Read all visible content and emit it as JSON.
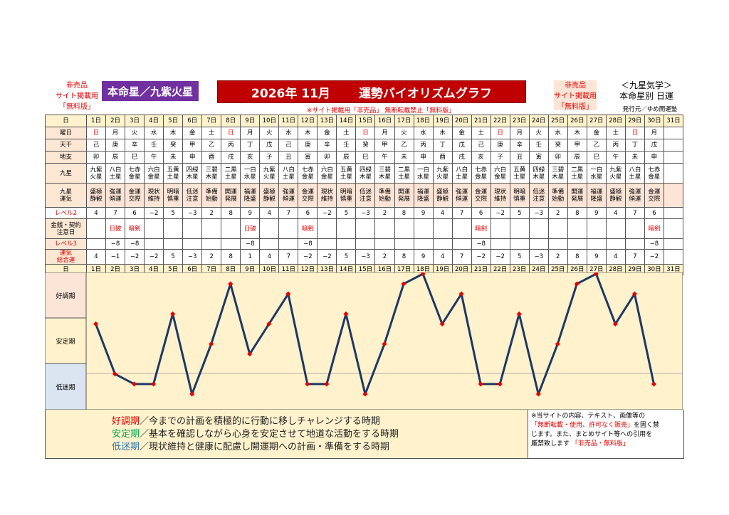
{
  "header": {
    "left_note": [
      "非売品",
      "サイト掲載用",
      "「無料版」"
    ],
    "star_label": "本命星／九紫火星",
    "title_year_month": "2026年 11月",
    "title_main": "運勢バイオリズムグラフ",
    "notice": "※サイト掲載用「非売品」 無断転載禁止「無料版」",
    "right_note": [
      "非売品",
      "サイト掲載用",
      "「無料版」"
    ],
    "brand": [
      "＜九星気学＞",
      "本命星別 日運"
    ],
    "publisher": "発行元／ゆめ開運塾"
  },
  "row_labels": {
    "day": "日",
    "weekday": "曜日",
    "stem": "天干",
    "branch": "地支",
    "star": "九星",
    "fortune": "九星\n運気",
    "level2": "レベル2",
    "money": "金銭・契約\n注意日",
    "level3": "レベル3",
    "total": "運気\n総合運"
  },
  "days": [
    "1日",
    "2日",
    "3日",
    "4日",
    "5日",
    "6日",
    "7日",
    "8日",
    "9日",
    "10日",
    "11日",
    "12日",
    "13日",
    "14日",
    "15日",
    "16日",
    "17日",
    "18日",
    "19日",
    "20日",
    "21日",
    "22日",
    "23日",
    "24日",
    "25日",
    "26日",
    "27日",
    "28日",
    "29日",
    "30日",
    "31日"
  ],
  "weekdays": [
    "日",
    "月",
    "火",
    "水",
    "木",
    "金",
    "土",
    "日",
    "月",
    "火",
    "水",
    "木",
    "金",
    "土",
    "日",
    "月",
    "火",
    "水",
    "木",
    "金",
    "土",
    "日",
    "月",
    "火",
    "水",
    "木",
    "金",
    "土",
    "日",
    "月",
    ""
  ],
  "stems": [
    "己",
    "庚",
    "辛",
    "壬",
    "癸",
    "甲",
    "乙",
    "丙",
    "丁",
    "戊",
    "己",
    "庚",
    "辛",
    "壬",
    "癸",
    "甲",
    "乙",
    "丙",
    "丁",
    "戊",
    "己",
    "庚",
    "辛",
    "壬",
    "癸",
    "甲",
    "乙",
    "丙",
    "丁",
    "戊",
    ""
  ],
  "branches": [
    "卯",
    "辰",
    "巳",
    "午",
    "未",
    "申",
    "酉",
    "戌",
    "亥",
    "子",
    "丑",
    "寅",
    "卯",
    "辰",
    "巳",
    "午",
    "未",
    "申",
    "酉",
    "戌",
    "亥",
    "子",
    "丑",
    "寅",
    "卯",
    "辰",
    "巳",
    "午",
    "未",
    "申",
    ""
  ],
  "stars": [
    "九紫\n火星",
    "八白\n土星",
    "七赤\n金星",
    "六白\n金星",
    "五黄\n土星",
    "四緑\n木星",
    "三碧\n木星",
    "二黒\n土星",
    "一白\n水星",
    "九紫\n火星",
    "八白\n土星",
    "七赤\n金星",
    "六白\n金星",
    "五黄\n土星",
    "四緑\n木星",
    "三碧\n木星",
    "二黒\n土星",
    "一白\n水星",
    "九紫\n火星",
    "八白\n土星",
    "七赤\n金星",
    "六白\n金星",
    "五黄\n土星",
    "四緑\n木星",
    "三碧\n木星",
    "二黒\n土星",
    "一白\n水星",
    "九紫\n火星",
    "八白\n土星",
    "七赤\n金星",
    ""
  ],
  "fortunes": [
    "盛極\n静観",
    "強運\n傾運",
    "金運\n交際",
    "現状\n維持",
    "明暗\n慎重",
    "低迷\n注意",
    "準備\n始動",
    "開運\n発展",
    "福運\n隆盛",
    "盛極\n静観",
    "強運\n傾運",
    "金運\n交際",
    "現状\n維持",
    "明暗\n慎重",
    "低迷\n注意",
    "準備\n始動",
    "開運\n発展",
    "福運\n隆盛",
    "盛極\n静観",
    "強運\n傾運",
    "金運\n交際",
    "現状\n維持",
    "明暗\n慎重",
    "低迷\n注意",
    "準備\n始動",
    "開運\n発展",
    "福運\n隆盛",
    "盛極\n静観",
    "強運\n傾運",
    "金運\n交際",
    ""
  ],
  "level2": [
    "4",
    "7",
    "6",
    "−2",
    "5",
    "−3",
    "2",
    "8",
    "9",
    "4",
    "7",
    "6",
    "−2",
    "5",
    "−3",
    "2",
    "8",
    "9",
    "4",
    "7",
    "6",
    "−2",
    "5",
    "−3",
    "2",
    "8",
    "9",
    "4",
    "7",
    "6",
    ""
  ],
  "money": [
    "",
    "日破",
    "暗剣",
    "",
    "",
    "",
    "",
    "",
    "日破",
    "",
    "",
    "暗剣",
    "",
    "",
    "",
    "",
    "",
    "",
    "",
    "",
    "暗剣",
    "",
    "",
    "",
    "",
    "",
    "",
    "",
    "",
    "暗剣",
    ""
  ],
  "level3": [
    "",
    "−8",
    "−8",
    "",
    "",
    "",
    "",
    "",
    "−8",
    "",
    "",
    "−8",
    "",
    "",
    "",
    "",
    "",
    "",
    "",
    "",
    "−8",
    "",
    "",
    "",
    "",
    "",
    "",
    "",
    "",
    "−8",
    ""
  ],
  "totals": [
    "4",
    "−1",
    "−2",
    "−2",
    "5",
    "−3",
    "2",
    "8",
    "1",
    "4",
    "7",
    "−2",
    "−2",
    "5",
    "−3",
    "2",
    "8",
    "9",
    "4",
    "7",
    "−2",
    "−2",
    "5",
    "−3",
    "2",
    "8",
    "9",
    "4",
    "7",
    "−2",
    ""
  ],
  "chart_labels": {
    "good": "好調期",
    "stable": "安定期",
    "low": "低迷期"
  },
  "legend": {
    "good_word": "好調期",
    "good_text": "／今までの計画を積極的に行動に移しチャレンジする時期",
    "stable_word": "安定期",
    "stable_text": "／基本を確認しながら心身を安定させて地道な活動をする時期",
    "low_word": "低迷期",
    "low_text": "／現状維持と健康に配慮し開運期への計画・準備をする時期"
  },
  "bottom_note": {
    "line1": "※当サイトの内容、テキスト、画像等の",
    "line2_red": "「無断転載・使用、許可なく販売」",
    "line2_rest": "を固く禁",
    "line3": "じます。また、まとめサイト等への引用を",
    "line4": "厳禁致します",
    "line4_red": "「非売品・無料版」"
  },
  "colors": {
    "line": "#1f3864",
    "marker": "#e60000",
    "good_band": "#fce4d6",
    "stable_band": "#fff2cc",
    "low_band": "#dbe5f1",
    "title_bg": "#c00000",
    "star_bg": "#7030a0"
  },
  "chart_data": {
    "type": "line",
    "x": [
      "1日",
      "2日",
      "3日",
      "4日",
      "5日",
      "6日",
      "7日",
      "8日",
      "9日",
      "10日",
      "11日",
      "12日",
      "13日",
      "14日",
      "15日",
      "16日",
      "17日",
      "18日",
      "19日",
      "20日",
      "21日",
      "22日",
      "23日",
      "24日",
      "25日",
      "26日",
      "27日",
      "28日",
      "29日",
      "30日"
    ],
    "values": [
      4,
      -1,
      -2,
      -2,
      5,
      -3,
      2,
      8,
      1,
      4,
      7,
      -2,
      -2,
      5,
      -3,
      2,
      8,
      9,
      4,
      7,
      -2,
      -2,
      5,
      -3,
      2,
      8,
      9,
      4,
      7,
      -2
    ],
    "ylim": [
      -3,
      9
    ],
    "bands": [
      "好調期",
      "安定期",
      "低迷期"
    ]
  }
}
